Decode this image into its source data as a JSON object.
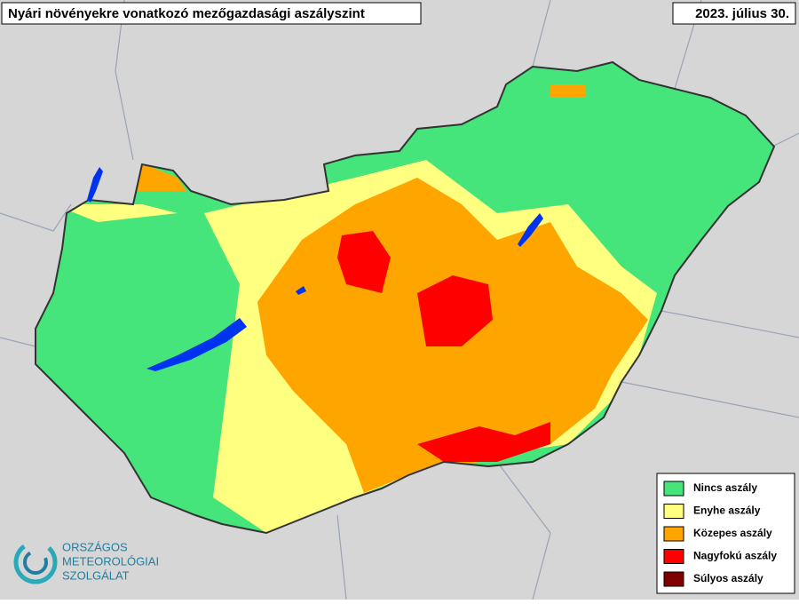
{
  "header": {
    "title": "Nyári növényekre vonatkozó mezőgazdasági aszályszint",
    "date": "2023. július 30."
  },
  "legend": {
    "items": [
      {
        "label": "Nincs aszály",
        "color": "#46e57c"
      },
      {
        "label": "Enyhe aszály",
        "color": "#ffff80"
      },
      {
        "label": "Közepes aszály",
        "color": "#ffa500"
      },
      {
        "label": "Nagyfokú aszály",
        "color": "#ff0000"
      },
      {
        "label": "Súlyos aszály",
        "color": "#800000"
      }
    ]
  },
  "logo": {
    "lines": [
      "ORSZÁGOS",
      "METEOROLÓGIAI",
      "SZOLGÁLAT"
    ]
  }
}
